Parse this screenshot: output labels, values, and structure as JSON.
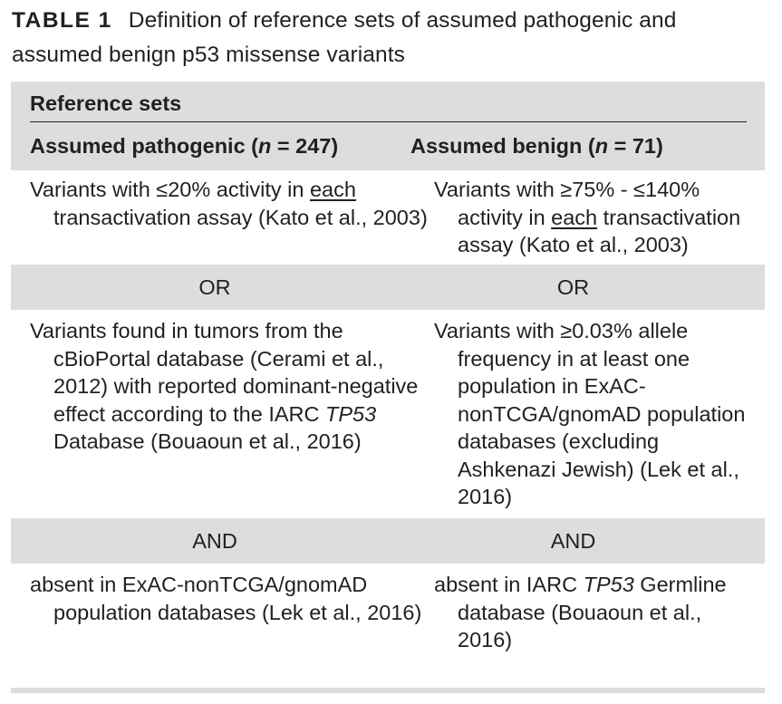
{
  "caption": {
    "label": "TABLE 1",
    "text": "Definition of reference sets of assumed pathogenic and assumed benign p53 missense variants"
  },
  "header": {
    "group": "Reference sets",
    "col1_pre": "Assumed pathogenic (",
    "col1_n": "n",
    "col1_post": " = 247)",
    "col2_pre": "Assumed benign (",
    "col2_n": "n",
    "col2_post": " = 71)"
  },
  "rows": {
    "r1": {
      "c1_a": "Variants with ≤20% activity in ",
      "c1_u": "each",
      "c1_b": " transactivation assay (Kato et al., 2003)",
      "c2_a": "Variants with ≥75% - ≤140% activity in ",
      "c2_u": "each",
      "c2_b": " transactivation assay (Kato et al., 2003)"
    },
    "or": {
      "c1": "OR",
      "c2": "OR"
    },
    "r2": {
      "c1_a": "Variants found in tumors from the cBioPortal database (Cerami et al., 2012) with reported dominant-negative effect according to the IARC ",
      "c1_it": "TP53",
      "c1_b": " Database (Bouaoun et al., 2016)",
      "c2": "Variants with ≥0.03% allele frequency in at least one population in ExAC-nonTCGA/gnomAD population databases (excluding Ashkenazi Jewish) (Lek et al., 2016)"
    },
    "and": {
      "c1": "AND",
      "c2": "AND"
    },
    "r3": {
      "c1": "absent in ExAC-nonTCGA/gnomAD population databases (Lek et al., 2016)",
      "c2_a": "absent in IARC ",
      "c2_it": "TP53",
      "c2_b": " Germline database (Bouaoun et al., 2016)"
    }
  }
}
